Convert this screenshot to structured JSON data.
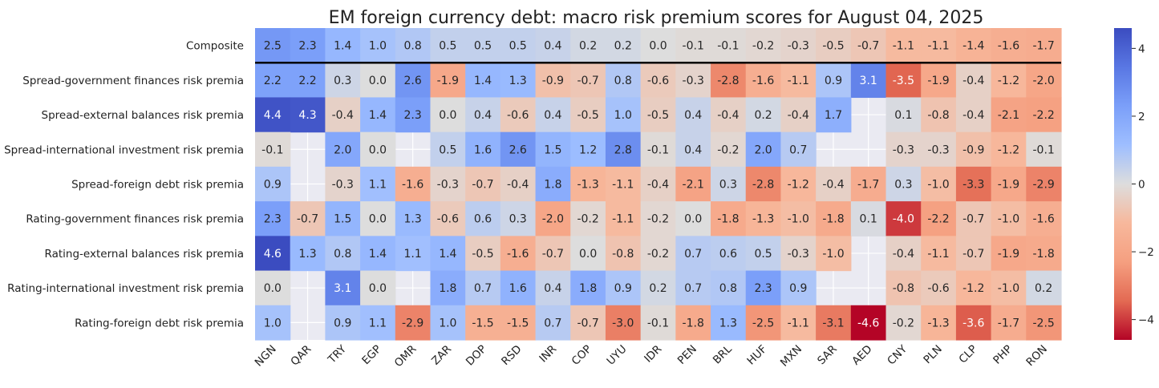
{
  "chart_data": {
    "type": "heatmap",
    "title": "EM foreign currency debt: macro risk premium scores for August 04, 2025",
    "columns": [
      "NGN",
      "QAR",
      "TRY",
      "EGP",
      "OMR",
      "ZAR",
      "DOP",
      "RSD",
      "INR",
      "COP",
      "UYU",
      "IDR",
      "PEN",
      "BRL",
      "HUF",
      "MXN",
      "SAR",
      "AED",
      "CNY",
      "PLN",
      "CLP",
      "PHP",
      "RON"
    ],
    "rows": [
      "Composite",
      "Spread-government finances risk premia",
      "Spread-external balances risk premia",
      "Spread-international investment risk premia",
      "Spread-foreign debt risk premia",
      "Rating-government finances risk premia",
      "Rating-external balances risk premia",
      "Rating-international investment risk premia",
      "Rating-foreign debt risk premia"
    ],
    "values": [
      [
        2.5,
        2.3,
        1.4,
        1.0,
        0.8,
        0.5,
        0.5,
        0.5,
        0.4,
        0.2,
        0.2,
        -0.0,
        -0.1,
        -0.1,
        -0.2,
        -0.3,
        -0.5,
        -0.7,
        -1.1,
        -1.1,
        -1.4,
        -1.6,
        -1.7
      ],
      [
        2.2,
        2.2,
        0.3,
        0.0,
        2.6,
        -1.9,
        1.4,
        1.3,
        -0.9,
        -0.7,
        0.8,
        -0.6,
        -0.3,
        -2.8,
        -1.6,
        -1.1,
        0.9,
        3.1,
        -3.5,
        -1.9,
        -0.4,
        -1.2,
        -2.0
      ],
      [
        4.4,
        4.3,
        -0.4,
        1.4,
        2.3,
        0.0,
        0.4,
        -0.6,
        0.4,
        -0.5,
        1.0,
        -0.5,
        0.4,
        -0.4,
        0.2,
        -0.4,
        1.7,
        null,
        0.1,
        -0.8,
        -0.4,
        -2.1,
        -2.2
      ],
      [
        -0.1,
        null,
        2.0,
        0.0,
        null,
        0.5,
        1.6,
        2.6,
        1.5,
        1.2,
        2.8,
        -0.1,
        0.4,
        -0.2,
        2.0,
        0.7,
        null,
        null,
        -0.3,
        -0.3,
        -0.9,
        -1.2,
        -0.1
      ],
      [
        0.9,
        null,
        -0.3,
        1.1,
        -1.6,
        -0.3,
        -0.7,
        -0.4,
        1.8,
        -1.3,
        -1.1,
        -0.4,
        -2.1,
        0.3,
        -2.8,
        -1.2,
        -0.4,
        -1.7,
        0.3,
        -1.0,
        -3.3,
        -1.9,
        -2.9
      ],
      [
        2.3,
        -0.7,
        1.5,
        0.0,
        1.3,
        -0.6,
        0.6,
        0.3,
        -2.0,
        -0.2,
        -1.1,
        -0.2,
        -0.0,
        -1.8,
        -1.3,
        -1.0,
        -1.8,
        0.1,
        -4.0,
        -2.2,
        -0.7,
        -1.0,
        -1.6
      ],
      [
        4.6,
        1.3,
        0.8,
        1.4,
        1.1,
        1.4,
        -0.5,
        -1.6,
        -0.7,
        0.0,
        -0.8,
        -0.2,
        0.7,
        0.6,
        0.5,
        -0.3,
        -1.0,
        null,
        -0.4,
        -1.1,
        -0.7,
        -1.9,
        -1.8
      ],
      [
        0.0,
        null,
        3.1,
        0.0,
        null,
        1.8,
        0.7,
        1.6,
        0.4,
        1.8,
        0.9,
        0.2,
        0.7,
        0.8,
        2.3,
        0.9,
        null,
        null,
        -0.8,
        -0.6,
        -1.2,
        -1.0,
        0.2
      ],
      [
        1.0,
        null,
        0.9,
        1.1,
        -2.9,
        1.0,
        -1.5,
        -1.5,
        0.7,
        -0.7,
        -3.0,
        -0.1,
        -1.8,
        1.3,
        -2.5,
        -1.1,
        -3.1,
        -4.6,
        -0.2,
        -1.3,
        -3.6,
        -1.7,
        -2.5
      ]
    ],
    "colormap": "coolwarm_r",
    "vmin": -4.6,
    "vmax": 4.6,
    "colorbar_ticks": [
      "4",
      "2",
      "0",
      "−2",
      "−4"
    ],
    "colorbar_tick_values": [
      4,
      2,
      0,
      -2,
      -4
    ],
    "separator_after_row": "Composite",
    "missing_cell_color": "#eaeaf2",
    "grid": true
  }
}
